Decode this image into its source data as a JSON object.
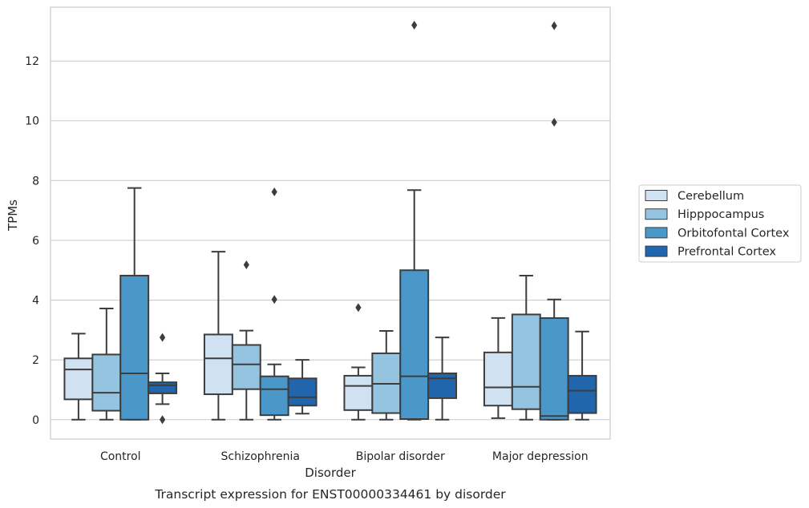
{
  "chart_data": {
    "type": "box",
    "title": "Transcript expression for ENST00000334461 by disorder",
    "xlabel": "Disorder",
    "ylabel": "TPMs",
    "ylim": [
      -0.65,
      13.8
    ],
    "yticks": [
      0,
      2,
      4,
      6,
      8,
      10,
      12
    ],
    "grid": "horizontal",
    "legend_position": "right",
    "categories": [
      "Control",
      "Schizophrenia",
      "Bipolar disorder",
      "Major depression"
    ],
    "series": [
      {
        "name": "Cerebellum",
        "color": "#d0e1f2",
        "boxes": [
          {
            "whislo": 0.0,
            "q1": 0.68,
            "med": 1.68,
            "q3": 2.05,
            "whishi": 2.88,
            "fliers": []
          },
          {
            "whislo": 0.0,
            "q1": 0.85,
            "med": 2.05,
            "q3": 2.85,
            "whishi": 5.62,
            "fliers": []
          },
          {
            "whislo": 0.0,
            "q1": 0.32,
            "med": 1.13,
            "q3": 1.47,
            "whishi": 1.75,
            "fliers": [
              3.75
            ]
          },
          {
            "whislo": 0.05,
            "q1": 0.47,
            "med": 1.08,
            "q3": 2.25,
            "whishi": 3.4,
            "fliers": []
          }
        ]
      },
      {
        "name": "Hipppocampus",
        "color": "#94c4df",
        "boxes": [
          {
            "whislo": 0.0,
            "q1": 0.3,
            "med": 0.9,
            "q3": 2.18,
            "whishi": 3.72,
            "fliers": []
          },
          {
            "whislo": 0.0,
            "q1": 1.02,
            "med": 1.85,
            "q3": 2.5,
            "whishi": 2.98,
            "fliers": [
              5.18
            ]
          },
          {
            "whislo": 0.0,
            "q1": 0.22,
            "med": 1.2,
            "q3": 2.22,
            "whishi": 2.97,
            "fliers": []
          },
          {
            "whislo": 0.0,
            "q1": 0.35,
            "med": 1.1,
            "q3": 3.52,
            "whishi": 4.82,
            "fliers": []
          }
        ]
      },
      {
        "name": "Orbitofontal Cortex",
        "color": "#4a98c9",
        "boxes": [
          {
            "whislo": 0.0,
            "q1": 0.0,
            "med": 1.55,
            "q3": 4.82,
            "whishi": 7.75,
            "fliers": []
          },
          {
            "whislo": 0.0,
            "q1": 0.15,
            "med": 1.02,
            "q3": 1.45,
            "whishi": 1.85,
            "fliers": [
              4.02,
              7.62
            ]
          },
          {
            "whislo": 0.0,
            "q1": 0.02,
            "med": 1.45,
            "q3": 5.0,
            "whishi": 7.68,
            "fliers": [
              13.2
            ]
          },
          {
            "whislo": 0.0,
            "q1": 0.0,
            "med": 0.12,
            "q3": 3.4,
            "whishi": 4.02,
            "fliers": [
              9.95,
              13.18
            ]
          }
        ]
      },
      {
        "name": "Prefrontal Cortex",
        "color": "#2166ac",
        "boxes": [
          {
            "whislo": 0.52,
            "q1": 0.88,
            "med": 1.15,
            "q3": 1.25,
            "whishi": 1.55,
            "fliers": [
              0.0,
              2.75
            ]
          },
          {
            "whislo": 0.2,
            "q1": 0.47,
            "med": 0.75,
            "q3": 1.38,
            "whishi": 2.0,
            "fliers": []
          },
          {
            "whislo": 0.0,
            "q1": 0.72,
            "med": 1.38,
            "q3": 1.55,
            "whishi": 2.75,
            "fliers": []
          },
          {
            "whislo": 0.0,
            "q1": 0.22,
            "med": 0.97,
            "q3": 1.47,
            "whishi": 2.95,
            "fliers": []
          }
        ]
      }
    ]
  }
}
